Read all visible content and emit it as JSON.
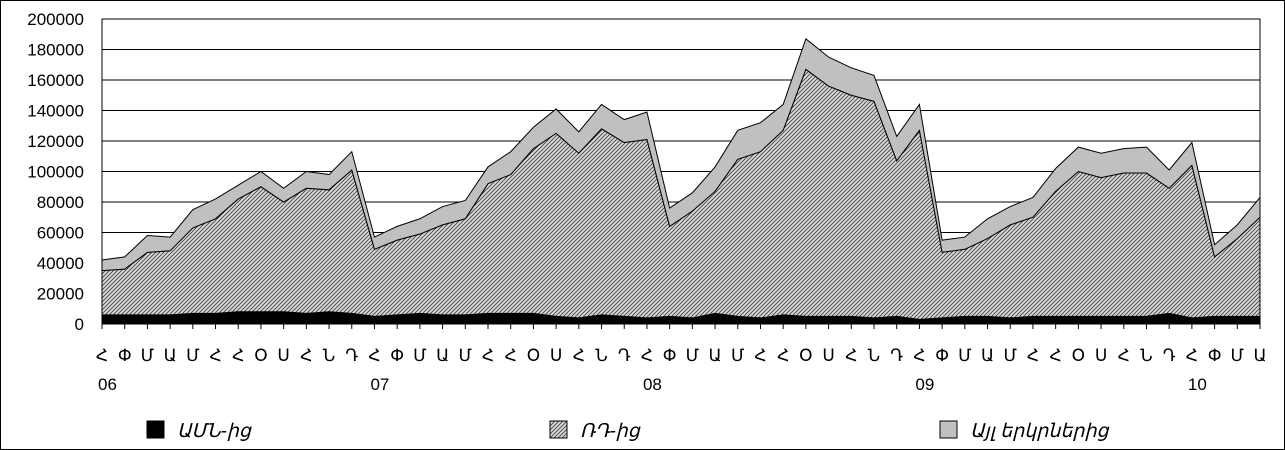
{
  "chart_data": {
    "type": "area",
    "stacked": true,
    "ylim": [
      0,
      200000
    ],
    "y_ticks": [
      0,
      20000,
      40000,
      60000,
      80000,
      100000,
      120000,
      140000,
      160000,
      180000,
      200000
    ],
    "grid": "horizontal",
    "legend_position": "bottom",
    "x_month_labels": [
      "Հ",
      "Փ",
      "Մ",
      "Ա",
      "Մ",
      "Հ",
      "Հ",
      "Օ",
      "Ս",
      "Հ",
      "Ն",
      "Դ",
      "Հ",
      "Փ",
      "Մ",
      "Ա",
      "Մ",
      "Հ",
      "Հ",
      "Օ",
      "Ս",
      "Հ",
      "Ն",
      "Դ",
      "Հ",
      "Փ",
      "Մ",
      "Ա",
      "Մ",
      "Հ",
      "Հ",
      "Օ",
      "Ս",
      "Հ",
      "Ն",
      "Դ",
      "Հ",
      "Փ",
      "Մ",
      "Ա",
      "Մ",
      "Հ",
      "Հ",
      "Օ",
      "Ս",
      "Հ",
      "Ն",
      "Դ",
      "Հ",
      "Փ",
      "Մ",
      "Ա"
    ],
    "x_year_labels": [
      {
        "label": "06",
        "index": 0
      },
      {
        "label": "07",
        "index": 12
      },
      {
        "label": "08",
        "index": 24
      },
      {
        "label": "09",
        "index": 36
      },
      {
        "label": "10",
        "index": 48
      }
    ],
    "series": [
      {
        "name": "ԱՄՆ-ից",
        "pattern": "solid-black",
        "values": [
          6000,
          6000,
          6000,
          6000,
          7000,
          7000,
          8000,
          8000,
          8000,
          7000,
          8000,
          7000,
          5000,
          6000,
          7000,
          6000,
          6000,
          7000,
          7000,
          7000,
          5000,
          4000,
          6000,
          5000,
          4000,
          5000,
          4000,
          7000,
          5000,
          4000,
          6000,
          5000,
          5000,
          5000,
          4000,
          5000,
          3000,
          4000,
          5000,
          5000,
          4000,
          5000,
          5000,
          5000,
          5000,
          5000,
          5000,
          7000,
          4000,
          5000,
          5000,
          5000
        ]
      },
      {
        "name": "ՌԴ-ից",
        "pattern": "hatched",
        "values": [
          29000,
          30000,
          41000,
          42000,
          56000,
          62000,
          74000,
          82000,
          72000,
          82000,
          80000,
          94000,
          44000,
          49000,
          52000,
          59000,
          63000,
          85000,
          91000,
          108000,
          120000,
          108000,
          122000,
          114000,
          117000,
          59000,
          70000,
          80000,
          103000,
          109000,
          121000,
          162000,
          151000,
          145000,
          142000,
          102000,
          124000,
          43000,
          44000,
          51000,
          61000,
          65000,
          82000,
          95000,
          91000,
          94000,
          94000,
          82000,
          100000,
          39000,
          51000,
          65000
        ]
      },
      {
        "name": "Այլ երկրներից",
        "pattern": "light-gray",
        "values": [
          7000,
          8000,
          11000,
          9000,
          12000,
          13000,
          9000,
          10000,
          9000,
          11000,
          10000,
          12000,
          8000,
          9000,
          10000,
          12000,
          12000,
          11000,
          15000,
          14000,
          16000,
          14000,
          16000,
          15000,
          18000,
          12000,
          12000,
          16000,
          19000,
          19000,
          17000,
          20000,
          19000,
          18000,
          17000,
          16000,
          17000,
          8000,
          8000,
          13000,
          12000,
          13000,
          15000,
          16000,
          16000,
          16000,
          17000,
          12000,
          15000,
          8000,
          9000,
          13000
        ]
      }
    ]
  }
}
